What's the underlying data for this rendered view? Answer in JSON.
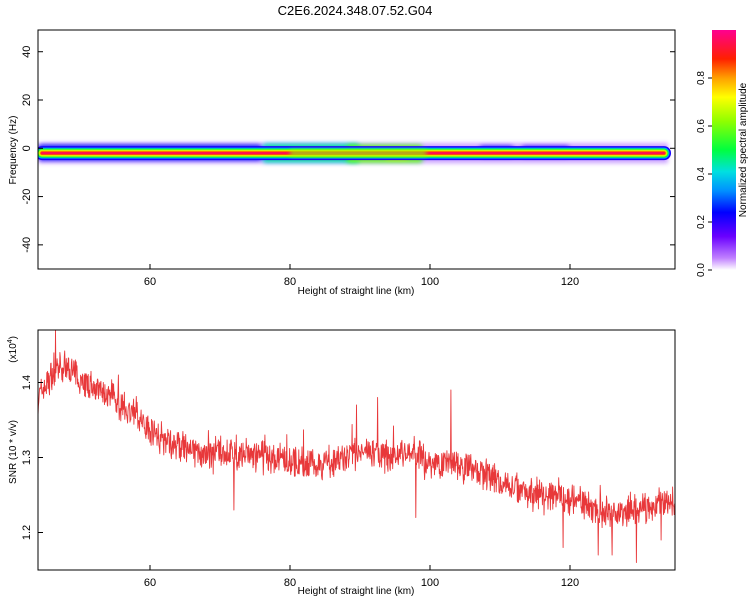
{
  "title": "C2E6.2024.348.07.52.G04",
  "chart_data": [
    {
      "type": "heatmap",
      "xlabel": "Height of straight line (km)",
      "ylabel": "Frequency (Hz)",
      "xlim": [
        44,
        135
      ],
      "ylim": [
        -50,
        49
      ],
      "xticks": [
        60,
        80,
        100,
        120
      ],
      "yticks": [
        40,
        20,
        0,
        -20,
        -40
      ],
      "band_frequency": -2,
      "band_start": 44,
      "band_end": 134,
      "disturbances": [
        {
          "x": [
            44,
            76
          ],
          "y": [
            -5,
            1.5
          ],
          "level": 0.22
        },
        {
          "x": [
            76,
            90
          ],
          "y": [
            -6,
            2
          ],
          "level": 0.4
        },
        {
          "x": [
            88,
            99
          ],
          "y": [
            -6,
            1.5
          ],
          "level": 0.55
        },
        {
          "x": [
            93.5,
            97
          ],
          "y": [
            -4.5,
            -1
          ],
          "level": 0.7
        },
        {
          "x": [
            107,
            112
          ],
          "y": [
            -3.5,
            1
          ],
          "level": 0.2
        },
        {
          "x": [
            113,
            120
          ],
          "y": [
            -3.5,
            1
          ],
          "level": 0.18
        }
      ],
      "colorbar": {
        "label": "Normalized spectral amplitude",
        "ticks": [
          0.0,
          0.2,
          0.4,
          0.6,
          0.8
        ],
        "range": [
          0,
          1
        ]
      }
    },
    {
      "type": "line",
      "xlabel": "Height of straight line (km)",
      "ylabel": "SNR (10 * v/v)",
      "multiplier": "(x10",
      "multiplier_exp": "4",
      "multiplier_close": ")",
      "xlim": [
        44,
        135
      ],
      "ylim": [
        1.15,
        1.47
      ],
      "xticks": [
        60,
        80,
        100,
        120
      ],
      "yticks": [
        1.2,
        1.3,
        1.4
      ],
      "yticklabels": [
        "1.2",
        "1.3",
        "1.4"
      ],
      "color": "#e8383a",
      "trend": [
        {
          "x": 44,
          "y": 1.38
        },
        {
          "x": 46,
          "y": 1.41
        },
        {
          "x": 48,
          "y": 1.42
        },
        {
          "x": 50,
          "y": 1.405
        },
        {
          "x": 53,
          "y": 1.385
        },
        {
          "x": 56,
          "y": 1.37
        },
        {
          "x": 58,
          "y": 1.355
        },
        {
          "x": 61,
          "y": 1.33
        },
        {
          "x": 64,
          "y": 1.315
        },
        {
          "x": 67,
          "y": 1.305
        },
        {
          "x": 70,
          "y": 1.305
        },
        {
          "x": 73,
          "y": 1.305
        },
        {
          "x": 76,
          "y": 1.3
        },
        {
          "x": 80,
          "y": 1.295
        },
        {
          "x": 84,
          "y": 1.29
        },
        {
          "x": 88,
          "y": 1.3
        },
        {
          "x": 91,
          "y": 1.31
        },
        {
          "x": 94,
          "y": 1.3
        },
        {
          "x": 97,
          "y": 1.31
        },
        {
          "x": 100,
          "y": 1.29
        },
        {
          "x": 103,
          "y": 1.295
        },
        {
          "x": 106,
          "y": 1.285
        },
        {
          "x": 109,
          "y": 1.27
        },
        {
          "x": 112,
          "y": 1.26
        },
        {
          "x": 115,
          "y": 1.255
        },
        {
          "x": 118,
          "y": 1.25
        },
        {
          "x": 121,
          "y": 1.245
        },
        {
          "x": 124,
          "y": 1.23
        },
        {
          "x": 127,
          "y": 1.225
        },
        {
          "x": 130,
          "y": 1.23
        },
        {
          "x": 133,
          "y": 1.24
        },
        {
          "x": 135,
          "y": 1.24
        }
      ],
      "spikes": [
        {
          "x": 46.5,
          "y": 1.47
        },
        {
          "x": 55.5,
          "y": 1.41
        },
        {
          "x": 89.5,
          "y": 1.37
        },
        {
          "x": 92.5,
          "y": 1.38
        },
        {
          "x": 103,
          "y": 1.39
        },
        {
          "x": 72,
          "y": 1.23
        },
        {
          "x": 98,
          "y": 1.22
        },
        {
          "x": 119,
          "y": 1.18
        },
        {
          "x": 124,
          "y": 1.17
        },
        {
          "x": 126,
          "y": 1.17
        },
        {
          "x": 129.5,
          "y": 1.16
        },
        {
          "x": 133,
          "y": 1.19
        }
      ],
      "noise_amplitude": 0.018
    }
  ]
}
